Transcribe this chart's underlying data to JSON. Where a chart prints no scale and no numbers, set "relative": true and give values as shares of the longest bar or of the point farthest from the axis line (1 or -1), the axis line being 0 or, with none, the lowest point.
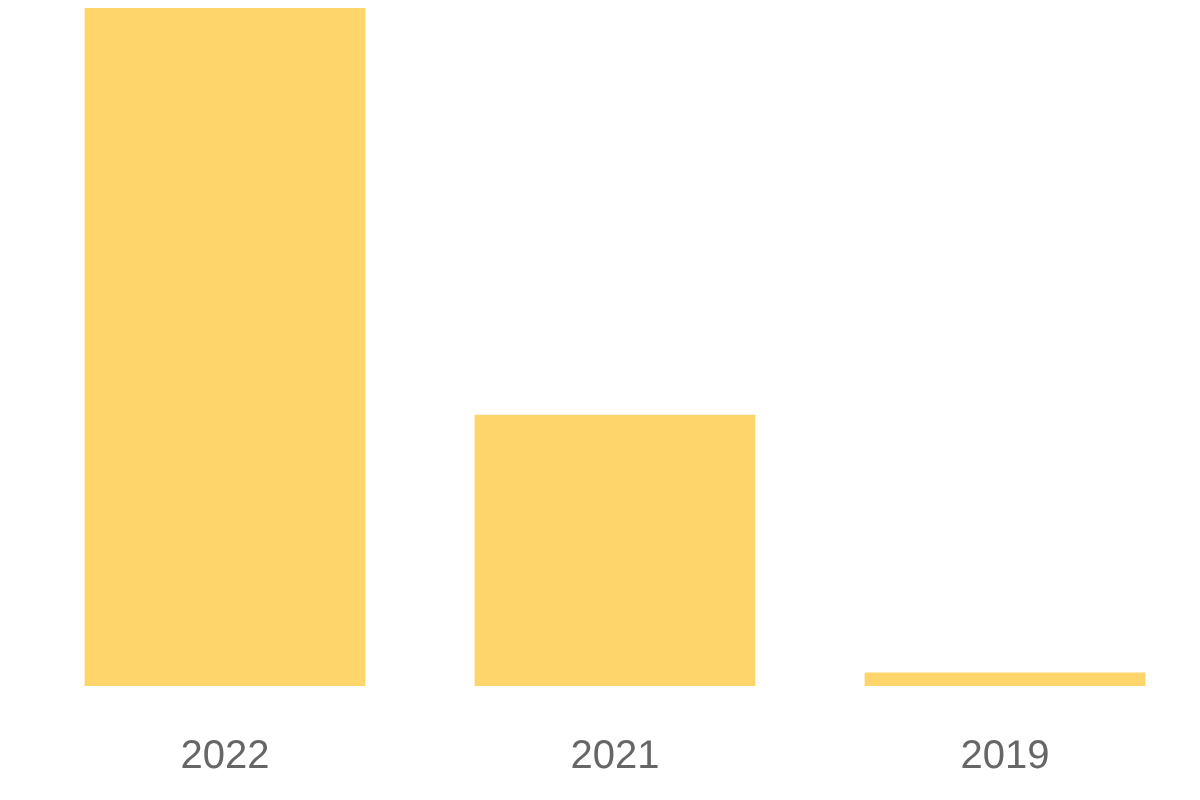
{
  "chart_data": {
    "type": "bar",
    "relative": true,
    "categories": [
      "2022",
      "2021",
      "2019"
    ],
    "values": [
      1,
      0.4,
      0.02
    ],
    "color": "#fed56b"
  }
}
